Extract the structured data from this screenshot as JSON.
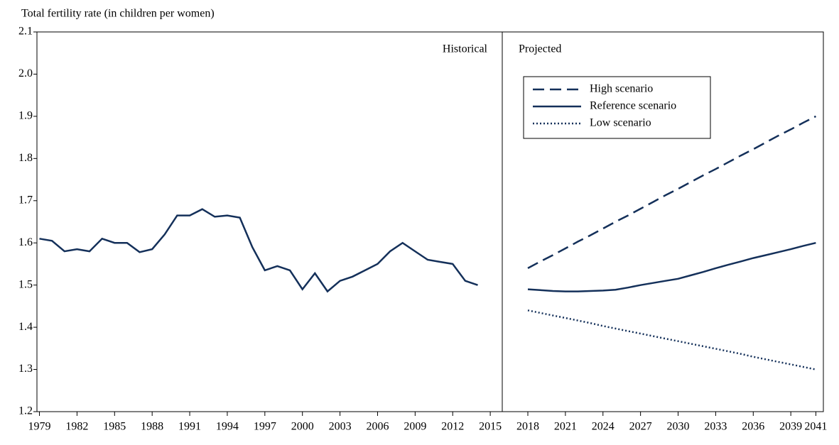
{
  "chart_data": {
    "type": "line",
    "ylabel": "Total fertility rate (in children per women)",
    "annotations": [
      "Historical",
      "Projected"
    ],
    "xlim": [
      1978.8,
      2041.6
    ],
    "xticks": [
      1979,
      1982,
      1985,
      1988,
      1991,
      1994,
      1997,
      2000,
      2003,
      2006,
      2009,
      2012,
      2015,
      2018,
      2021,
      2024,
      2027,
      2030,
      2033,
      2036,
      2039,
      2041
    ],
    "ylim": [
      1.2,
      2.1
    ],
    "yticks": [
      1.2,
      1.3,
      1.4,
      1.5,
      1.6,
      1.7,
      1.8,
      1.9,
      {
        "value": 2,
        "label": "2.0"
      },
      2.1
    ],
    "legend": "upper left",
    "series": [
      {
        "color": "#14305a",
        "linestyle": "solid",
        "x": [
          1979,
          1980,
          1981,
          1982,
          1983,
          1984,
          1985,
          1986,
          1987,
          1988,
          1989,
          1990,
          1991,
          1992,
          1993,
          1994,
          1995,
          1996,
          1997,
          1998,
          1999,
          2000,
          2001,
          2002,
          2003,
          2004,
          2005,
          2006,
          2007,
          2008,
          2009,
          2010,
          2011,
          2012,
          2013,
          2014
        ],
        "values": [
          1.61,
          1.605,
          1.58,
          1.585,
          1.58,
          1.61,
          1.6,
          1.6,
          1.578,
          1.585,
          1.62,
          1.665,
          1.665,
          1.68,
          1.662,
          1.665,
          1.66,
          1.59,
          1.535,
          1.545,
          1.535,
          1.49,
          1.528,
          1.485,
          1.51,
          1.52,
          1.535,
          1.55,
          1.58,
          1.6,
          1.58,
          1.56,
          1.555,
          1.55,
          1.51,
          1.5
        ]
      },
      {
        "name": "High scenario",
        "color": "#14305a",
        "linestyle": "dashed",
        "x": [
          2018,
          2019,
          2020,
          2021,
          2022,
          2023,
          2024,
          2025,
          2026,
          2027,
          2028,
          2029,
          2030,
          2031,
          2032,
          2033,
          2034,
          2035,
          2036,
          2037,
          2038,
          2039,
          2040,
          2041
        ],
        "values": [
          1.54,
          1.556,
          1.571,
          1.587,
          1.603,
          1.618,
          1.634,
          1.65,
          1.665,
          1.681,
          1.697,
          1.713,
          1.728,
          1.744,
          1.76,
          1.775,
          1.791,
          1.807,
          1.822,
          1.838,
          1.854,
          1.869,
          1.885,
          1.9
        ]
      },
      {
        "name": "Reference scenario",
        "color": "#14305a",
        "linestyle": "solid",
        "x": [
          2018,
          2019,
          2020,
          2021,
          2022,
          2023,
          2024,
          2025,
          2026,
          2027,
          2028,
          2029,
          2030,
          2031,
          2032,
          2033,
          2034,
          2035,
          2036,
          2037,
          2038,
          2039,
          2040,
          2041
        ],
        "values": [
          1.49,
          1.488,
          1.486,
          1.485,
          1.485,
          1.486,
          1.487,
          1.489,
          1.494,
          1.5,
          1.505,
          1.51,
          1.515,
          1.523,
          1.531,
          1.54,
          1.548,
          1.556,
          1.564,
          1.571,
          1.578,
          1.585,
          1.593,
          1.6
        ]
      },
      {
        "name": "Low scenario",
        "color": "#14305a",
        "linestyle": "dotted",
        "x": [
          2018,
          2019,
          2020,
          2021,
          2022,
          2023,
          2024,
          2025,
          2026,
          2027,
          2028,
          2029,
          2030,
          2031,
          2032,
          2033,
          2034,
          2035,
          2036,
          2037,
          2038,
          2039,
          2040,
          2041
        ],
        "values": [
          1.44,
          1.434,
          1.428,
          1.422,
          1.416,
          1.41,
          1.403,
          1.397,
          1.391,
          1.385,
          1.379,
          1.373,
          1.367,
          1.361,
          1.355,
          1.349,
          1.343,
          1.337,
          1.33,
          1.324,
          1.318,
          1.312,
          1.306,
          1.3
        ]
      }
    ]
  }
}
